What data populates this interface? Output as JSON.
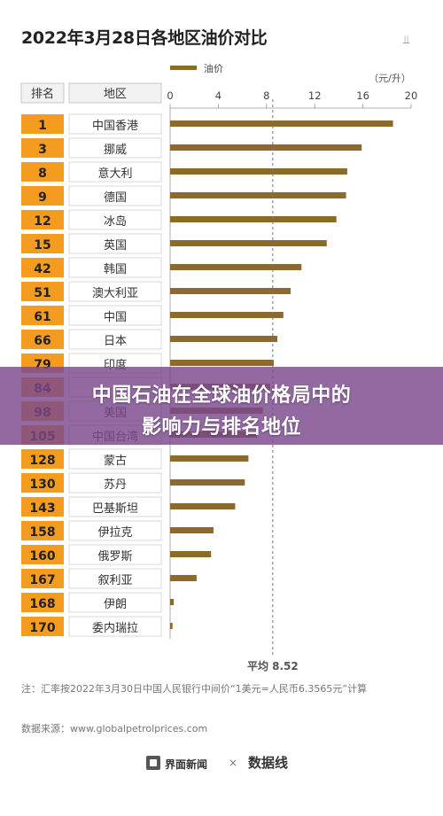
{
  "header": {
    "title": "2022年3月28日各地区油价对比",
    "share_icon": "share-icon"
  },
  "chart_data": {
    "type": "bar",
    "orientation": "horizontal",
    "legend": {
      "label": "油价",
      "placement": "top"
    },
    "unit": "（元/升）",
    "columns": {
      "rank": "排名",
      "region": "地区"
    },
    "xlim": [
      0,
      20
    ],
    "x_ticks": [
      0,
      4,
      8,
      12,
      16,
      20
    ],
    "average": {
      "value": 8.52,
      "label": "平均 8.52"
    },
    "rows": [
      {
        "rank": "1",
        "region": "中国香港",
        "value": 18.5
      },
      {
        "rank": "3",
        "region": "挪威",
        "value": 15.9
      },
      {
        "rank": "8",
        "region": "意大利",
        "value": 14.7
      },
      {
        "rank": "9",
        "region": "德国",
        "value": 14.6
      },
      {
        "rank": "12",
        "region": "冰岛",
        "value": 13.8
      },
      {
        "rank": "15",
        "region": "英国",
        "value": 13.0
      },
      {
        "rank": "42",
        "region": "韩国",
        "value": 10.9
      },
      {
        "rank": "51",
        "region": "澳大利亚",
        "value": 10.0
      },
      {
        "rank": "61",
        "region": "中国",
        "value": 9.4
      },
      {
        "rank": "66",
        "region": "日本",
        "value": 8.9
      },
      {
        "rank": "79",
        "region": "印度",
        "value": 8.6
      },
      {
        "rank": "84",
        "region": "",
        "value": 8.3
      },
      {
        "rank": "98",
        "region": "美国",
        "value": 7.7
      },
      {
        "rank": "105",
        "region": "中国台湾",
        "value": 7.2
      },
      {
        "rank": "128",
        "region": "蒙古",
        "value": 6.5
      },
      {
        "rank": "130",
        "region": "苏丹",
        "value": 6.2
      },
      {
        "rank": "143",
        "region": "巴基斯坦",
        "value": 5.4
      },
      {
        "rank": "158",
        "region": "伊拉克",
        "value": 3.6
      },
      {
        "rank": "160",
        "region": "俄罗斯",
        "value": 3.4
      },
      {
        "rank": "167",
        "region": "叙利亚",
        "value": 2.2
      },
      {
        "rank": "168",
        "region": "伊朗",
        "value": 0.3
      },
      {
        "rank": "170",
        "region": "委内瑞拉",
        "value": 0.2
      }
    ],
    "colors": {
      "bar": "#8c6a2c",
      "rank_fill": "#f39c1f",
      "avg_line": "#777777"
    }
  },
  "overlay": {
    "line1": "中国石油在全球油价格局中的",
    "line2": "影响力与排名地位"
  },
  "note": "注：汇率按2022年3月30日中国人民银行中间价“1美元=人民币6.3565元”计算",
  "source": "数据来源：www.globalpetrolprices.com",
  "footer": {
    "brand1": "界面新闻",
    "sep": "×",
    "brand2": "数据线"
  }
}
